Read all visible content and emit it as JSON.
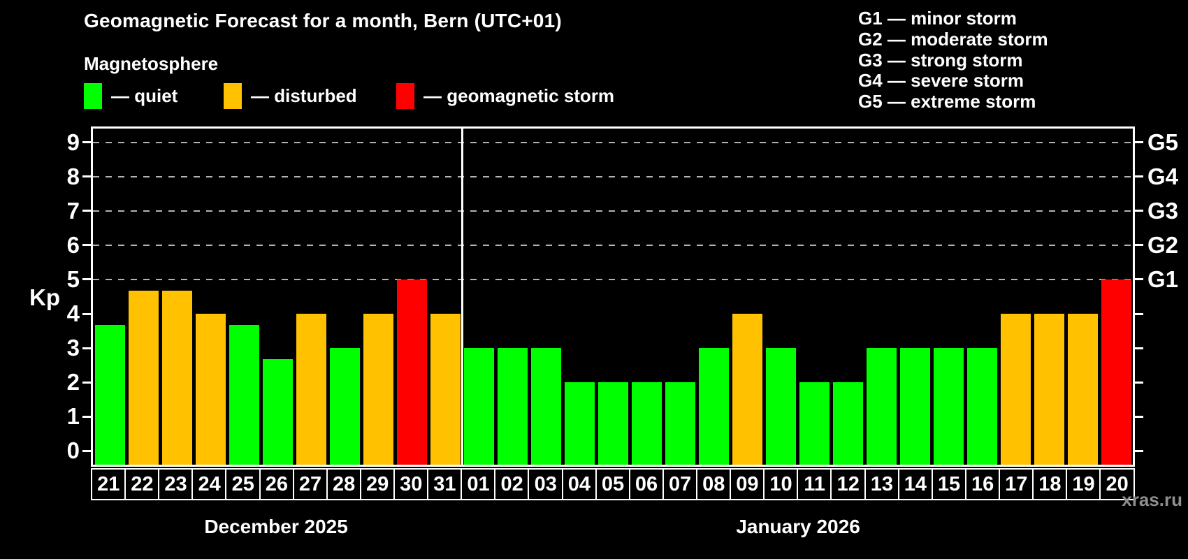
{
  "title": "Geomagnetic Forecast for a month, Bern (UTC+01)",
  "subtitle": "Magnetosphere",
  "legend": {
    "quiet_label": "— quiet",
    "disturbed_label": "— disturbed",
    "storm_label": "— geomagnetic storm"
  },
  "g_scale_legend": {
    "lines": [
      "G1 — minor storm",
      "G2 — moderate storm",
      "G3 — strong storm",
      "G4 — severe storm",
      "G5 — extreme storm"
    ]
  },
  "colors": {
    "quiet": "#00ff00",
    "disturbed": "#ffc100",
    "storm": "#ff0000",
    "background": "#000000",
    "frame": "#ffffff",
    "gridline": "#b3b3b3",
    "watermark": "#8f8f8f"
  },
  "axis": {
    "kp_label": "Kp",
    "kp_ticks": [
      0,
      1,
      2,
      3,
      4,
      5,
      6,
      7,
      8,
      9
    ],
    "g_labels": [
      {
        "kp": 5,
        "label": "G1"
      },
      {
        "kp": 6,
        "label": "G2"
      },
      {
        "kp": 7,
        "label": "G3"
      },
      {
        "kp": 8,
        "label": "G4"
      },
      {
        "kp": 9,
        "label": "G5"
      }
    ],
    "gridline_levels": [
      5,
      6,
      7,
      8,
      9
    ]
  },
  "months": [
    {
      "label": "December 2025",
      "day_count": 11
    },
    {
      "label": "January 2026",
      "day_count": 20
    }
  ],
  "watermark": "xras.ru",
  "chart_data": {
    "type": "bar",
    "title": "Geomagnetic Forecast for a month, Bern (UTC+01)",
    "ylabel": "Kp",
    "ylim": [
      0,
      9
    ],
    "grid": "dashed horizontal at Kp 5-9 (G1-G5)",
    "legend_position": "top",
    "bars": [
      {
        "date": "21",
        "month": "December 2025",
        "kp": 3.67,
        "status": "quiet"
      },
      {
        "date": "22",
        "month": "December 2025",
        "kp": 4.67,
        "status": "disturbed"
      },
      {
        "date": "23",
        "month": "December 2025",
        "kp": 4.67,
        "status": "disturbed"
      },
      {
        "date": "24",
        "month": "December 2025",
        "kp": 4,
        "status": "disturbed"
      },
      {
        "date": "25",
        "month": "December 2025",
        "kp": 3.67,
        "status": "quiet"
      },
      {
        "date": "26",
        "month": "December 2025",
        "kp": 2.67,
        "status": "quiet"
      },
      {
        "date": "27",
        "month": "December 2025",
        "kp": 4,
        "status": "disturbed"
      },
      {
        "date": "28",
        "month": "December 2025",
        "kp": 3,
        "status": "quiet"
      },
      {
        "date": "29",
        "month": "December 2025",
        "kp": 4,
        "status": "disturbed"
      },
      {
        "date": "30",
        "month": "December 2025",
        "kp": 5,
        "status": "storm"
      },
      {
        "date": "31",
        "month": "December 2025",
        "kp": 4,
        "status": "disturbed"
      },
      {
        "date": "01",
        "month": "January 2026",
        "kp": 3,
        "status": "quiet"
      },
      {
        "date": "02",
        "month": "January 2026",
        "kp": 3,
        "status": "quiet"
      },
      {
        "date": "03",
        "month": "January 2026",
        "kp": 3,
        "status": "quiet"
      },
      {
        "date": "04",
        "month": "January 2026",
        "kp": 2,
        "status": "quiet"
      },
      {
        "date": "05",
        "month": "January 2026",
        "kp": 2,
        "status": "quiet"
      },
      {
        "date": "06",
        "month": "January 2026",
        "kp": 2,
        "status": "quiet"
      },
      {
        "date": "07",
        "month": "January 2026",
        "kp": 2,
        "status": "quiet"
      },
      {
        "date": "08",
        "month": "January 2026",
        "kp": 3,
        "status": "quiet"
      },
      {
        "date": "09",
        "month": "January 2026",
        "kp": 4,
        "status": "disturbed"
      },
      {
        "date": "10",
        "month": "January 2026",
        "kp": 3,
        "status": "quiet"
      },
      {
        "date": "11",
        "month": "January 2026",
        "kp": 2,
        "status": "quiet"
      },
      {
        "date": "12",
        "month": "January 2026",
        "kp": 2,
        "status": "quiet"
      },
      {
        "date": "13",
        "month": "January 2026",
        "kp": 3,
        "status": "quiet"
      },
      {
        "date": "14",
        "month": "January 2026",
        "kp": 3,
        "status": "quiet"
      },
      {
        "date": "15",
        "month": "January 2026",
        "kp": 3,
        "status": "quiet"
      },
      {
        "date": "16",
        "month": "January 2026",
        "kp": 3,
        "status": "quiet"
      },
      {
        "date": "17",
        "month": "January 2026",
        "kp": 4,
        "status": "disturbed"
      },
      {
        "date": "18",
        "month": "January 2026",
        "kp": 4,
        "status": "disturbed"
      },
      {
        "date": "19",
        "month": "January 2026",
        "kp": 4,
        "status": "disturbed"
      },
      {
        "date": "20",
        "month": "January 2026",
        "kp": 5,
        "status": "storm"
      }
    ]
  }
}
